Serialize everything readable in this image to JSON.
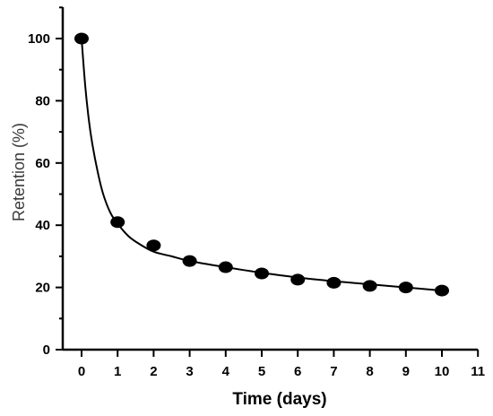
{
  "chart_data": {
    "type": "scatter",
    "xlabel": "Time (days)",
    "ylabel": "Retention (%)",
    "xlim": [
      0,
      11
    ],
    "ylim": [
      0,
      110
    ],
    "xticks": [
      "0",
      "1",
      "2",
      "3",
      "4",
      "5",
      "6",
      "7",
      "8",
      "9",
      "10",
      "11"
    ],
    "yticks": [
      "0",
      "20",
      "40",
      "60",
      "80",
      "100"
    ],
    "grid": false,
    "series": [
      {
        "x": [
          0,
          1,
          2,
          3,
          4,
          5,
          6,
          7,
          8,
          9,
          10
        ],
        "y": [
          100,
          41,
          33.5,
          28.5,
          26.5,
          24.5,
          22.5,
          21.5,
          20.5,
          20,
          19
        ]
      }
    ],
    "fit_line": {
      "x": [
        0,
        0.1,
        0.2,
        0.3,
        0.45,
        0.6,
        0.8,
        1,
        1.3,
        1.6,
        2,
        2.5,
        3,
        4,
        5,
        6,
        7,
        8,
        9,
        10
      ],
      "y": [
        100,
        85,
        74,
        66,
        57,
        50,
        44,
        40.5,
        36.5,
        34,
        31.5,
        30,
        28.5,
        26.5,
        24.7,
        23.2,
        22,
        21,
        20,
        19
      ]
    },
    "colors": {
      "marker": "#000000",
      "line": "#000000",
      "axis": "#000000"
    }
  }
}
